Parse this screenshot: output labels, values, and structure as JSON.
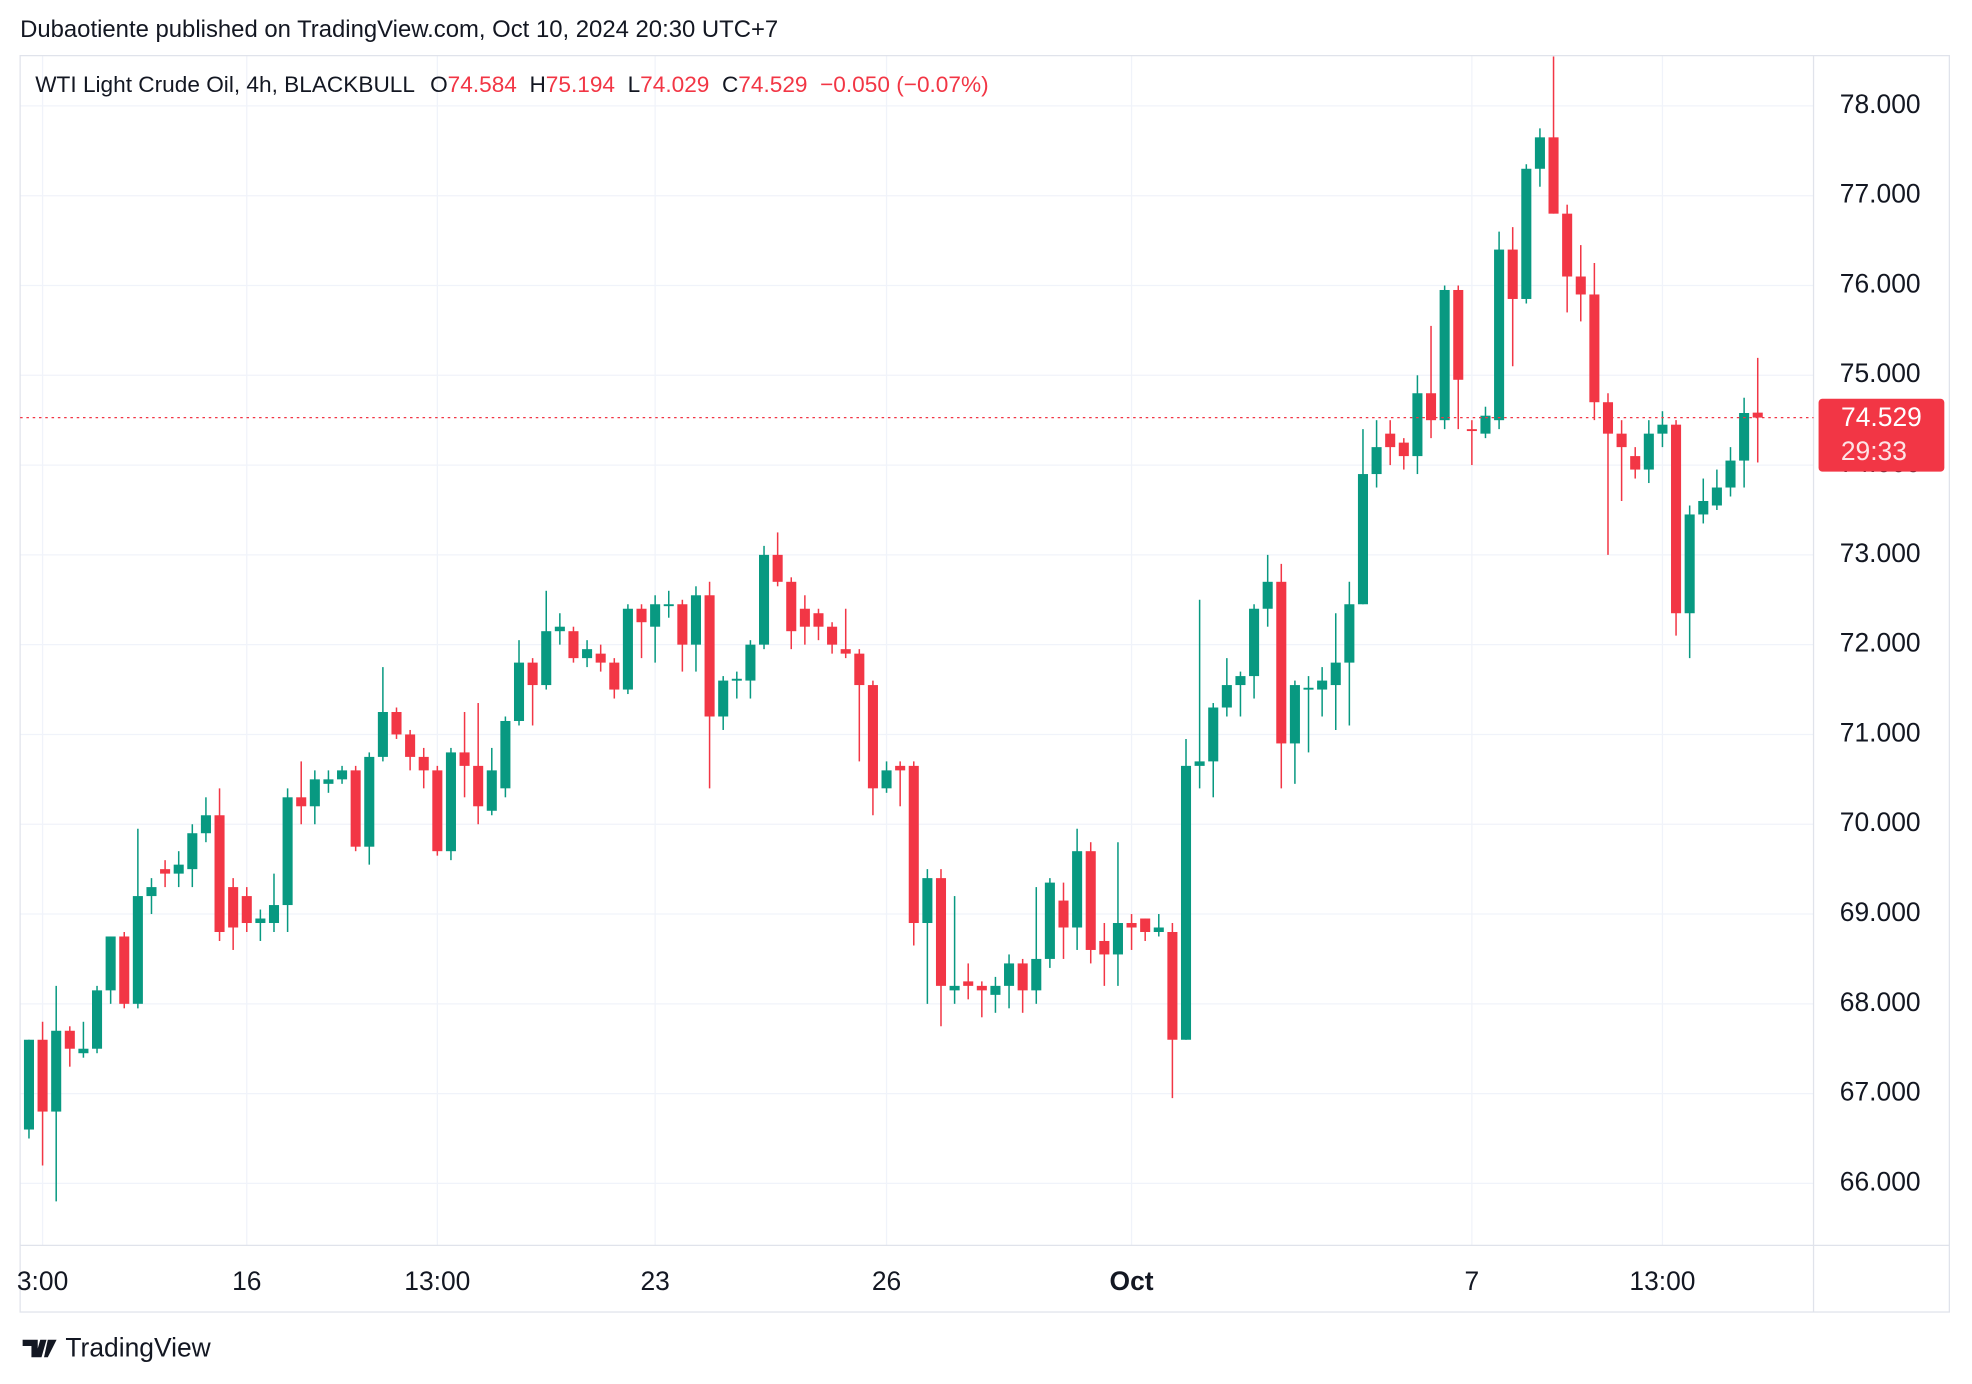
{
  "chart_data": {
    "type": "candlestick",
    "header": "Dubaotiente published on TradingView.com, Oct 10, 2024 20:30 UTC+7",
    "title": "WTI Light Crude Oil, 4h, BLACKBULL",
    "ohlc_prefixes": [
      "O",
      "H",
      "L",
      "C"
    ],
    "change_label": "−0.050 (−0.07%)",
    "countdown": "29:33",
    "brand": "TradingView",
    "up_color": "#089981",
    "down_color": "#f23645",
    "grid": true,
    "open": [
      66.6,
      67.6,
      66.8,
      67.7,
      67.45,
      67.5,
      68.15,
      68.75,
      68.0,
      69.2,
      69.5,
      69.45,
      69.5,
      69.9,
      70.1,
      69.3,
      69.2,
      68.9,
      68.9,
      69.1,
      70.3,
      70.2,
      70.45,
      70.5,
      70.6,
      69.75,
      70.75,
      71.25,
      71.0,
      70.75,
      70.6,
      69.7,
      70.8,
      70.65,
      70.15,
      70.4,
      71.15,
      71.8,
      71.55,
      72.15,
      72.15,
      71.85,
      71.9,
      71.8,
      71.5,
      72.4,
      72.2,
      72.43,
      72.45,
      72.0,
      72.55,
      71.2,
      71.6,
      71.6,
      72.0,
      73.0,
      72.7,
      72.4,
      72.35,
      72.2,
      71.95,
      71.9,
      71.55,
      70.4,
      70.65,
      70.65,
      68.9,
      69.4,
      68.15,
      68.25,
      68.2,
      68.1,
      68.2,
      68.45,
      68.15,
      68.5,
      69.15,
      68.85,
      69.7,
      68.7,
      68.55,
      68.9,
      68.95,
      68.8,
      68.8,
      67.6,
      70.65,
      70.7,
      71.3,
      71.55,
      71.65,
      72.4,
      72.7,
      70.9,
      71.5,
      71.5,
      71.55,
      71.8,
      72.45,
      73.9,
      74.35,
      74.25,
      74.1,
      74.8,
      74.5,
      75.95,
      74.4,
      74.35,
      74.5,
      76.4,
      75.85,
      77.3,
      77.65,
      76.8,
      76.1,
      75.9,
      74.7,
      74.35,
      74.1,
      73.95,
      74.35,
      74.45,
      72.35,
      73.45,
      73.55,
      73.75,
      74.05,
      74.584
    ],
    "high": [
      67.6,
      67.8,
      68.2,
      67.75,
      67.8,
      68.2,
      68.75,
      68.8,
      69.95,
      69.4,
      69.6,
      69.7,
      70.0,
      70.3,
      70.4,
      69.4,
      69.3,
      69.05,
      69.45,
      70.4,
      70.7,
      70.6,
      70.6,
      70.65,
      70.65,
      70.8,
      71.75,
      71.3,
      71.05,
      70.85,
      70.65,
      70.85,
      71.25,
      71.35,
      70.85,
      71.2,
      72.05,
      71.85,
      72.6,
      72.35,
      72.2,
      72.05,
      72.0,
      71.85,
      72.45,
      72.45,
      72.55,
      72.6,
      72.5,
      72.65,
      72.7,
      71.65,
      71.7,
      72.05,
      73.1,
      73.25,
      72.75,
      72.55,
      72.4,
      72.25,
      72.4,
      71.95,
      71.6,
      70.7,
      70.7,
      70.7,
      69.5,
      69.5,
      69.2,
      68.45,
      68.25,
      68.3,
      68.55,
      68.5,
      69.3,
      69.4,
      69.35,
      69.95,
      69.8,
      68.9,
      69.8,
      69.0,
      68.95,
      69.0,
      68.9,
      70.95,
      72.5,
      71.35,
      71.85,
      71.7,
      72.45,
      73.0,
      72.9,
      71.6,
      71.65,
      71.75,
      72.35,
      72.7,
      74.4,
      74.5,
      74.5,
      74.3,
      75.0,
      75.55,
      76.0,
      76.0,
      74.5,
      74.65,
      76.6,
      76.65,
      77.35,
      77.75,
      78.55,
      76.9,
      76.45,
      76.25,
      74.8,
      74.5,
      74.2,
      74.5,
      74.6,
      74.5,
      73.55,
      73.85,
      73.95,
      74.2,
      74.75,
      75.194
    ],
    "low": [
      66.5,
      66.2,
      65.8,
      67.3,
      67.4,
      67.45,
      68.0,
      67.95,
      67.95,
      69.0,
      69.3,
      69.3,
      69.3,
      69.8,
      68.7,
      68.6,
      68.8,
      68.7,
      68.8,
      68.8,
      70.0,
      70.0,
      70.35,
      70.45,
      69.7,
      69.55,
      70.7,
      70.95,
      70.6,
      70.4,
      69.65,
      69.6,
      70.3,
      70.0,
      70.1,
      70.3,
      71.1,
      71.1,
      71.5,
      72.0,
      71.8,
      71.75,
      71.7,
      71.4,
      71.45,
      71.85,
      71.8,
      72.3,
      71.7,
      71.7,
      70.4,
      71.05,
      71.4,
      71.4,
      71.95,
      72.65,
      71.95,
      72.0,
      72.05,
      71.9,
      71.85,
      70.7,
      70.1,
      70.35,
      70.2,
      68.65,
      68.0,
      67.75,
      68.0,
      68.05,
      67.85,
      67.9,
      67.95,
      67.9,
      68.0,
      68.4,
      68.5,
      68.6,
      68.45,
      68.2,
      68.2,
      68.6,
      68.7,
      68.75,
      66.95,
      67.6,
      70.4,
      70.3,
      71.2,
      71.2,
      71.4,
      72.2,
      70.4,
      70.45,
      70.8,
      71.2,
      71.05,
      71.1,
      72.45,
      73.75,
      74.0,
      73.95,
      73.9,
      74.3,
      74.4,
      74.4,
      74.0,
      74.3,
      74.4,
      75.1,
      75.8,
      77.1,
      76.8,
      75.7,
      75.6,
      74.5,
      73.0,
      73.6,
      73.85,
      73.8,
      74.2,
      72.1,
      71.85,
      73.35,
      73.5,
      73.65,
      73.75,
      74.029
    ],
    "close": [
      67.6,
      66.8,
      67.7,
      67.5,
      67.5,
      68.15,
      68.75,
      68.0,
      69.2,
      69.3,
      69.45,
      69.55,
      69.9,
      70.1,
      68.8,
      68.85,
      68.9,
      68.95,
      69.1,
      70.3,
      70.2,
      70.5,
      70.5,
      70.6,
      69.75,
      70.75,
      71.25,
      71.0,
      70.75,
      70.6,
      69.7,
      70.8,
      70.65,
      70.2,
      70.6,
      71.15,
      71.8,
      71.55,
      72.15,
      72.2,
      71.85,
      71.95,
      71.8,
      71.5,
      72.4,
      72.25,
      72.45,
      72.45,
      72.0,
      72.55,
      71.2,
      71.6,
      71.62,
      72.0,
      73.0,
      72.7,
      72.15,
      72.2,
      72.2,
      72.0,
      71.9,
      71.55,
      70.4,
      70.6,
      70.6,
      68.9,
      69.4,
      68.2,
      68.2,
      68.2,
      68.15,
      68.2,
      68.45,
      68.15,
      68.5,
      69.35,
      68.85,
      69.7,
      68.6,
      68.55,
      68.9,
      68.85,
      68.8,
      68.85,
      67.6,
      70.65,
      70.7,
      71.3,
      71.55,
      71.65,
      72.4,
      72.7,
      70.9,
      71.55,
      71.52,
      71.6,
      71.8,
      72.45,
      73.9,
      74.2,
      74.2,
      74.1,
      74.8,
      74.5,
      75.95,
      74.95,
      74.38,
      74.55,
      76.4,
      75.85,
      77.3,
      77.65,
      76.8,
      76.1,
      75.9,
      74.7,
      74.35,
      74.2,
      73.95,
      74.35,
      74.45,
      72.35,
      73.45,
      73.6,
      73.75,
      74.05,
      74.58,
      74.529
    ],
    "xlim": [
      -0.65,
      131.1
    ],
    "xticks": [
      {
        "value": 1,
        "label": "3:00"
      },
      {
        "value": 16,
        "label": "16"
      },
      {
        "value": 30,
        "label": "13:00"
      },
      {
        "value": 46,
        "label": "23"
      },
      {
        "value": 63,
        "label": "26"
      },
      {
        "value": 81,
        "label": "Oct"
      },
      {
        "value": 106,
        "label": "7"
      },
      {
        "value": 120,
        "label": "13:00"
      }
    ],
    "ylim": [
      65.31,
      78.56
    ],
    "yticks": [
      {
        "value": 66,
        "label": "66.000"
      },
      {
        "value": 67,
        "label": "67.000"
      },
      {
        "value": 68,
        "label": "68.000"
      },
      {
        "value": 69,
        "label": "69.000"
      },
      {
        "value": 70,
        "label": "70.000"
      },
      {
        "value": 71,
        "label": "71.000"
      },
      {
        "value": 72,
        "label": "72.000"
      },
      {
        "value": 73,
        "label": "73.000"
      },
      {
        "value": 74,
        "label": "74.000"
      },
      {
        "value": 75,
        "label": "75.000"
      },
      {
        "value": 76,
        "label": "76.000"
      },
      {
        "value": 77,
        "label": "77.000"
      },
      {
        "value": 78,
        "label": "78.000"
      }
    ]
  }
}
